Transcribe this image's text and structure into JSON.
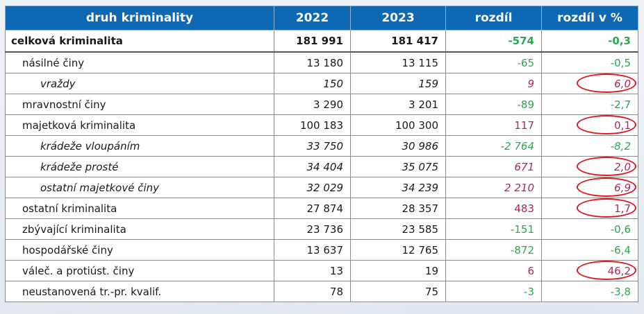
{
  "headers": [
    "druh kriminality",
    "2022",
    "2023",
    "rozdíl",
    "rozdíl v %"
  ],
  "rows": [
    {
      "label": "celková kriminalita",
      "y2022": "181 991",
      "y2023": "181 417",
      "diff": "-574",
      "pct": "-0,3",
      "level": "total",
      "sign": "neg",
      "circled": false
    },
    {
      "label": "násilné činy",
      "y2022": "13 180",
      "y2023": "13 115",
      "diff": "-65",
      "pct": "-0,5",
      "level": "l1",
      "sign": "neg",
      "circled": false
    },
    {
      "label": "vraždy",
      "y2022": "150",
      "y2023": "159",
      "diff": "9",
      "pct": "6,0",
      "level": "l2",
      "sign": "pos",
      "circled": true
    },
    {
      "label": "mravnostní činy",
      "y2022": "3 290",
      "y2023": "3 201",
      "diff": "-89",
      "pct": "-2,7",
      "level": "l1",
      "sign": "neg",
      "circled": false
    },
    {
      "label": "majetková kriminalita",
      "y2022": "100 183",
      "y2023": "100 300",
      "diff": "117",
      "pct": "0,1",
      "level": "l1",
      "sign": "pos",
      "circled": true
    },
    {
      "label": "krádeže vloupáním",
      "y2022": "33 750",
      "y2023": "30 986",
      "diff": "-2 764",
      "pct": "-8,2",
      "level": "l2",
      "sign": "neg",
      "circled": false
    },
    {
      "label": "krádeže prosté",
      "y2022": "34 404",
      "y2023": "35 075",
      "diff": "671",
      "pct": "2,0",
      "level": "l2",
      "sign": "pos",
      "circled": true
    },
    {
      "label": "ostatní majetkové činy",
      "y2022": "32 029",
      "y2023": "34 239",
      "diff": "2 210",
      "pct": "6,9",
      "level": "l2",
      "sign": "pos",
      "circled": true
    },
    {
      "label": "ostatní kriminalita",
      "y2022": "27 874",
      "y2023": "28 357",
      "diff": "483",
      "pct": "1,7",
      "level": "l1",
      "sign": "pos",
      "circled": true
    },
    {
      "label": "zbývající kriminalita",
      "y2022": "23 736",
      "y2023": "23 585",
      "diff": "-151",
      "pct": "-0,6",
      "level": "l1",
      "sign": "neg",
      "circled": false
    },
    {
      "label": "hospodářské činy",
      "y2022": "13 637",
      "y2023": "12 765",
      "diff": "-872",
      "pct": "-6,4",
      "level": "l1",
      "sign": "neg",
      "circled": false
    },
    {
      "label": "váleč. a protiúst. činy",
      "y2022": "13",
      "y2023": "19",
      "diff": "6",
      "pct": "46,2",
      "level": "l1",
      "sign": "pos",
      "circled": true
    },
    {
      "label": "neustanovená tr.-pr. kvalif.",
      "y2022": "78",
      "y2023": "75",
      "diff": "-3",
      "pct": "-3,8",
      "level": "l1",
      "sign": "neg",
      "circled": false
    }
  ],
  "colors": {
    "header_bg": "#0f68b3",
    "increase": "#b0285a",
    "decrease": "#2aa84f",
    "highlight_ring": "#e0141e"
  }
}
